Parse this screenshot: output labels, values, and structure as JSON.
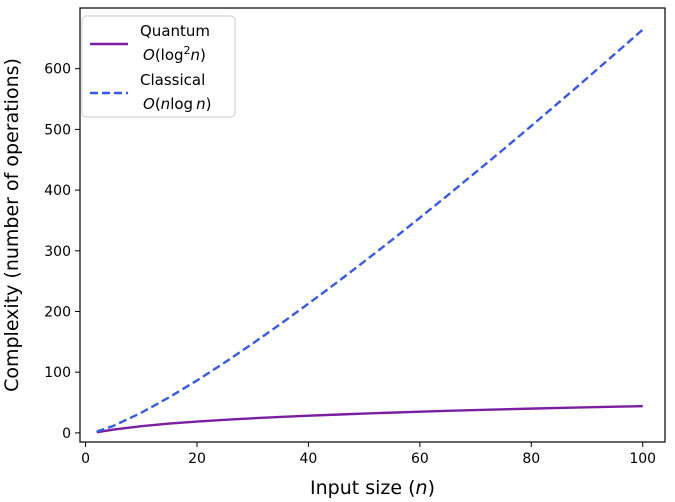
{
  "chart_data": {
    "type": "line",
    "xlabel": "Input size (n)",
    "xlabel_prefix": "Input size (",
    "xlabel_var": "n",
    "xlabel_suffix": ")",
    "ylabel": "Complexity (number of operations)",
    "xlim": [
      -1,
      104
    ],
    "ylim": [
      -15,
      700
    ],
    "xticks": [
      0,
      20,
      40,
      60,
      80,
      100
    ],
    "yticks": [
      0,
      100,
      200,
      300,
      400,
      500,
      600
    ],
    "grid": false,
    "legend_position": "top-left",
    "x": [
      2,
      5,
      10,
      15,
      20,
      25,
      30,
      35,
      40,
      45,
      50,
      55,
      60,
      65,
      70,
      75,
      80,
      85,
      90,
      95,
      100
    ],
    "series": [
      {
        "name": "Quantum",
        "formula": "O(log²n)",
        "color": "#7b1fa2",
        "style": "solid",
        "values": [
          1.0,
          5.4,
          11.0,
          15.3,
          18.7,
          21.5,
          24.1,
          26.3,
          28.3,
          30.1,
          31.8,
          33.4,
          34.9,
          36.3,
          37.6,
          38.8,
          40.0,
          41.1,
          42.1,
          43.1,
          44.1
        ]
      },
      {
        "name": "Classical",
        "formula": "O(n log n)",
        "color": "#3a5ae0",
        "style": "dashed",
        "values": [
          2.0,
          11.6,
          33.2,
          58.6,
          86.4,
          116.1,
          147.2,
          179.5,
          212.9,
          247.1,
          282.2,
          317.9,
          354.4,
          391.5,
          429.1,
          467.1,
          505.7,
          544.8,
          584.3,
          624.2,
          664.4
        ]
      }
    ]
  },
  "legend_formulas": {
    "quantum": {
      "prefix": "O(log",
      "sup": "2",
      "var": "n",
      "suffix": ")"
    },
    "classical": {
      "prefix": "O(",
      "var1": "n",
      "mid": "log",
      "var2": "n",
      "suffix": ")"
    }
  }
}
